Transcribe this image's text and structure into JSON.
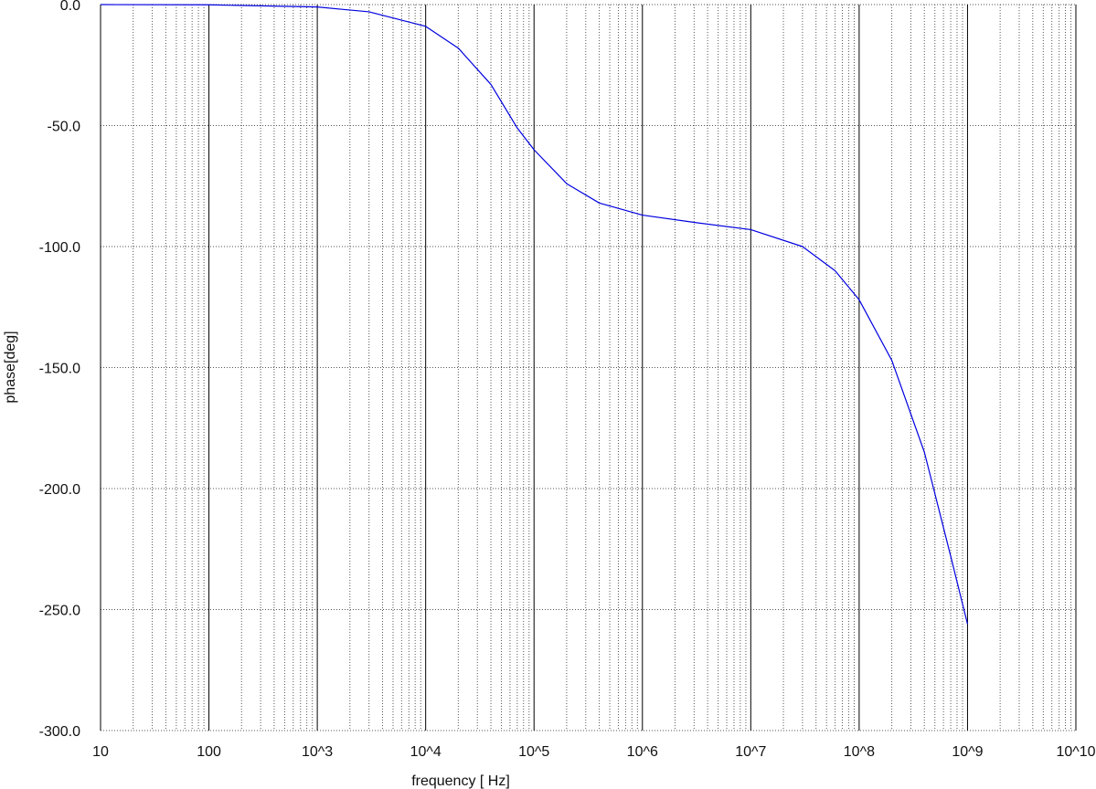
{
  "chart_data": {
    "type": "line",
    "title": "",
    "xlabel": "frequency [ Hz]",
    "ylabel": "phase[deg]",
    "xscale": "log",
    "xlim": [
      10,
      10000000000
    ],
    "ylim": [
      -300,
      0
    ],
    "grid": true,
    "x_ticks": [
      {
        "value": 10,
        "label": "10"
      },
      {
        "value": 100,
        "label": "100"
      },
      {
        "value": 1000,
        "label": "10^3"
      },
      {
        "value": 10000,
        "label": "10^4"
      },
      {
        "value": 100000,
        "label": "10^5"
      },
      {
        "value": 1000000,
        "label": "10^6"
      },
      {
        "value": 10000000,
        "label": "10^7"
      },
      {
        "value": 100000000,
        "label": "10^8"
      },
      {
        "value": 1000000000,
        "label": "10^9"
      },
      {
        "value": 10000000000,
        "label": "10^10"
      }
    ],
    "y_ticks": [
      {
        "value": 0,
        "label": "0.0"
      },
      {
        "value": -50,
        "label": "-50.0"
      },
      {
        "value": -100,
        "label": "-100.0"
      },
      {
        "value": -150,
        "label": "-150.0"
      },
      {
        "value": -200,
        "label": "-200.0"
      },
      {
        "value": -250,
        "label": "-250.0"
      },
      {
        "value": -300,
        "label": "-300.0"
      }
    ],
    "series": [
      {
        "color": "#0000e0",
        "points": [
          [
            10,
            0
          ],
          [
            100,
            -0.1
          ],
          [
            1000,
            -1
          ],
          [
            3000,
            -3
          ],
          [
            10000,
            -9
          ],
          [
            20000,
            -18
          ],
          [
            40000,
            -33
          ],
          [
            70000,
            -51
          ],
          [
            100000,
            -60
          ],
          [
            200000,
            -74
          ],
          [
            400000,
            -82
          ],
          [
            1000000,
            -87
          ],
          [
            3000000,
            -90
          ],
          [
            10000000,
            -93
          ],
          [
            30000000,
            -100
          ],
          [
            60000000,
            -110
          ],
          [
            100000000,
            -122
          ],
          [
            200000000,
            -147
          ],
          [
            400000000,
            -185
          ],
          [
            700000000,
            -228
          ],
          [
            1000000000,
            -256
          ]
        ]
      }
    ]
  }
}
